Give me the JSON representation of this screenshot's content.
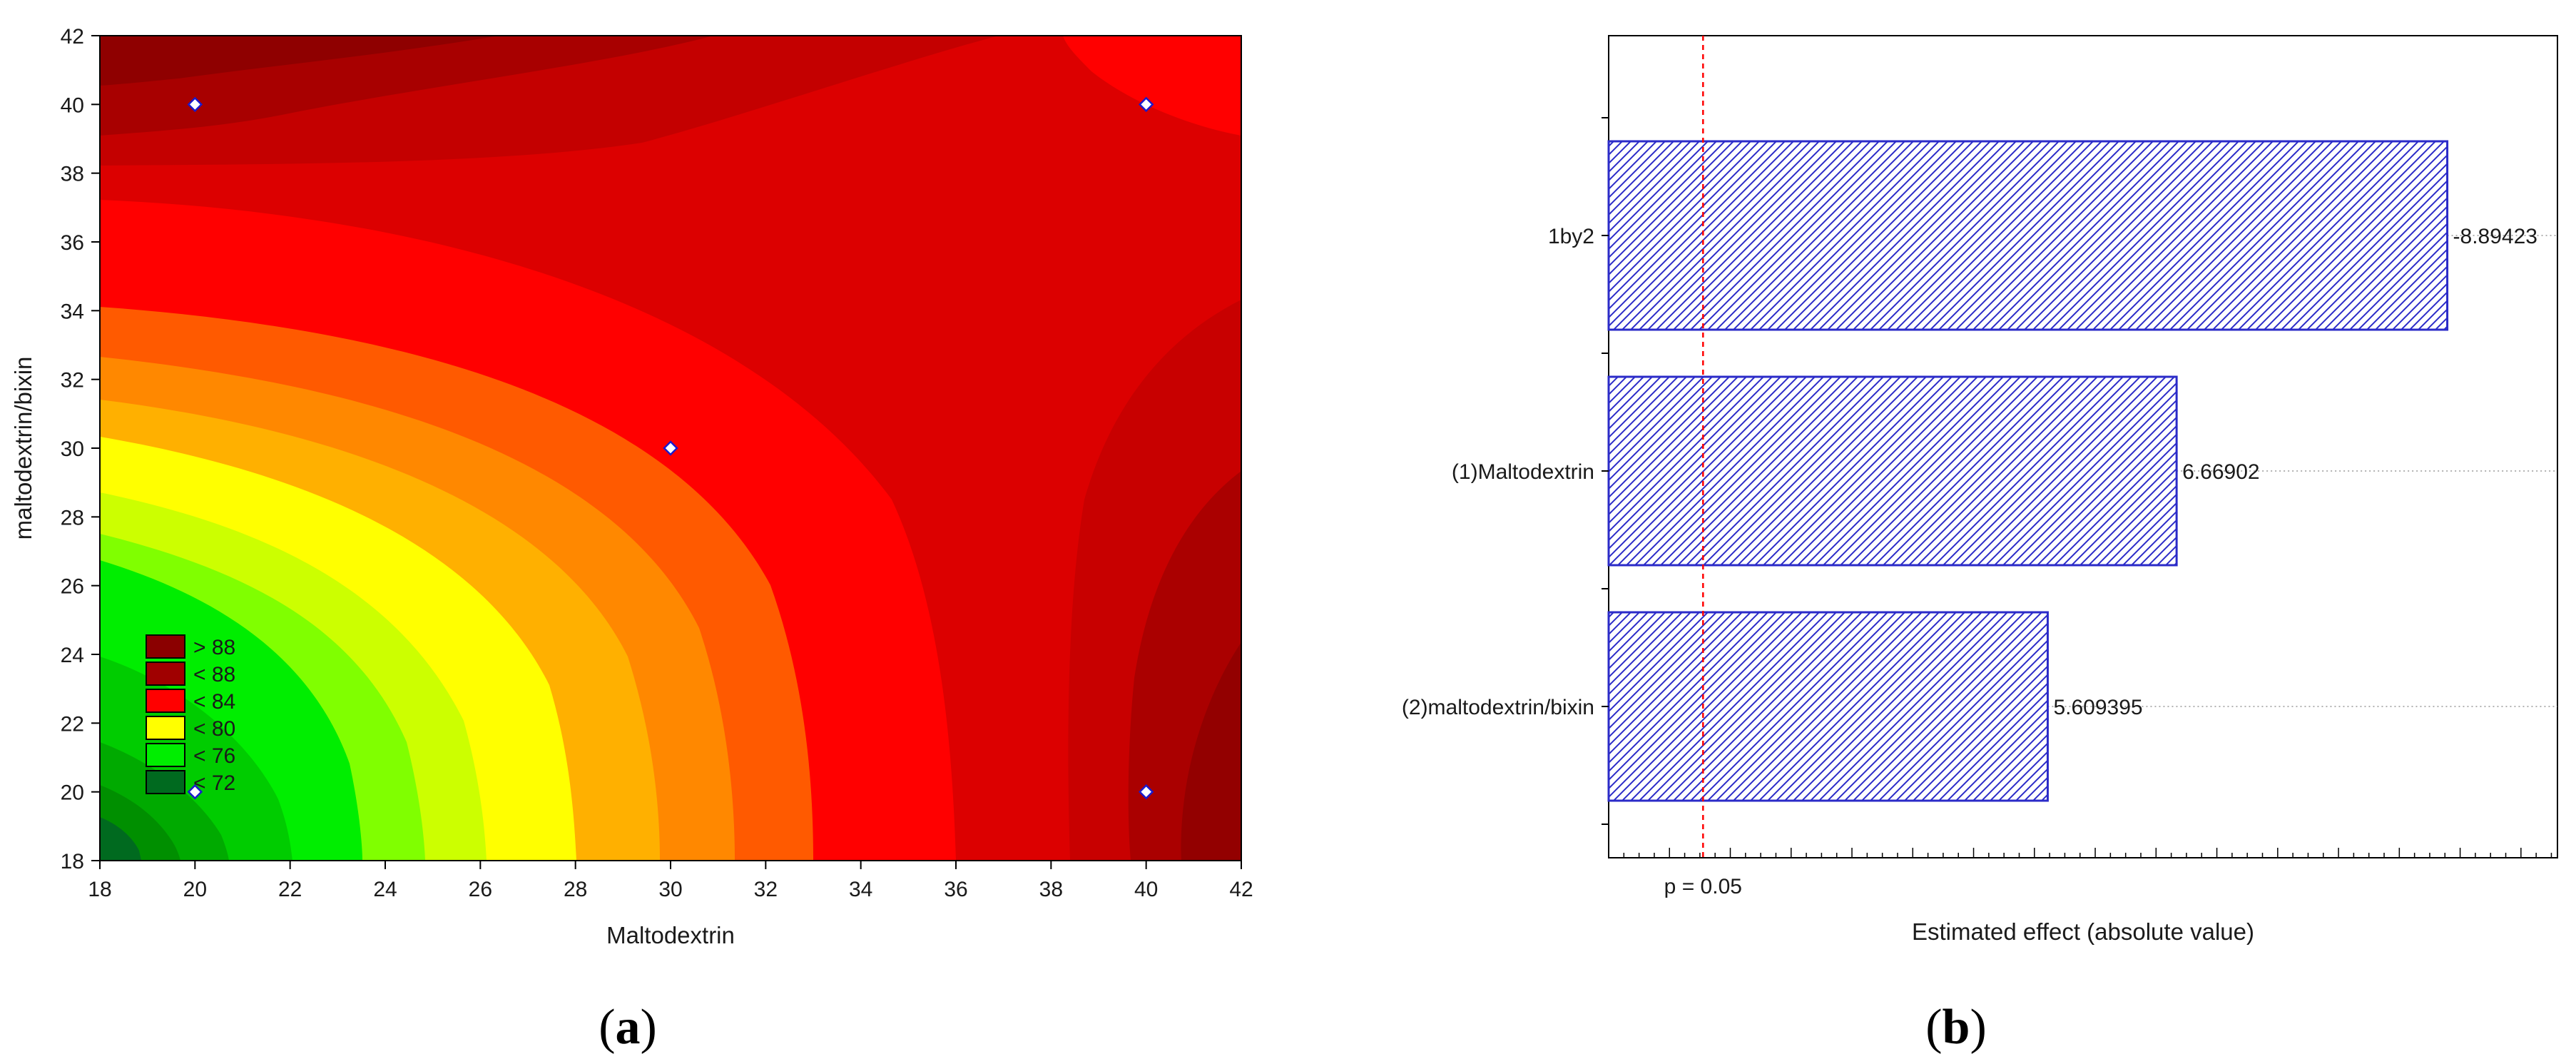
{
  "chart_data": [
    {
      "type": "contour",
      "panel_label": "a",
      "xlabel": "Maltodextrin",
      "ylabel": "maltodextrin/bixin",
      "xlim": [
        18,
        42
      ],
      "ylim": [
        18,
        42
      ],
      "xticks": [
        18,
        20,
        22,
        24,
        26,
        28,
        30,
        32,
        34,
        36,
        38,
        40,
        42
      ],
      "yticks": [
        18,
        20,
        22,
        24,
        26,
        28,
        30,
        32,
        34,
        36,
        38,
        40,
        42
      ],
      "legend": {
        "placement": "lower-left",
        "entries": [
          {
            "label": "> 88",
            "color": "#8b0000"
          },
          {
            "label": "< 88",
            "color": "#a00000"
          },
          {
            "label": "< 84",
            "color": "#ff0000"
          },
          {
            "label": "< 80",
            "color": "#ffff00"
          },
          {
            "label": "< 76",
            "color": "#00ee00"
          },
          {
            "label": "< 72",
            "color": "#006a1f"
          }
        ]
      },
      "design_points": [
        {
          "x": 20,
          "y": 40
        },
        {
          "x": 40,
          "y": 40
        },
        {
          "x": 30,
          "y": 30
        },
        {
          "x": 20,
          "y": 20
        },
        {
          "x": 40,
          "y": 20
        }
      ],
      "grid": false
    },
    {
      "type": "bar",
      "orientation": "horizontal",
      "panel_label": "b",
      "xlabel": "Estimated effect (absolute value)",
      "categories": [
        "1by2",
        "(1)Maltodextrin",
        "(2)maltodextrin/bixin"
      ],
      "values": [
        8.89423,
        6.66902,
        5.609395
      ],
      "value_labels": [
        "-8.89423",
        "6.66902",
        "5.609395"
      ],
      "reference_line": {
        "value": 2.776,
        "label": "p = 0.05"
      },
      "xlim": [
        2.0,
        9.8
      ],
      "fill": "hatched",
      "color": "#2222cc"
    }
  ]
}
